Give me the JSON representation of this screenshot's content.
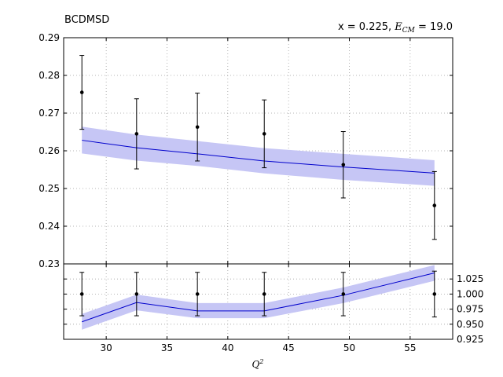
{
  "chart_data": {
    "type": "line",
    "title_left": "BCDMSD",
    "title_right_prefix": "x = 0.225, ",
    "title_right_math_main": "E",
    "title_right_math_sub": "CM",
    "title_right_suffix": " = 19.0",
    "xlabel_main": "Q",
    "xlabel_sup": "2",
    "xlim": [
      26.5,
      58.5
    ],
    "x_ticks": [
      30,
      35,
      40,
      45,
      50,
      55
    ],
    "x_tick_labels": [
      "30",
      "35",
      "40",
      "45",
      "50",
      "55"
    ],
    "top_panel": {
      "ylim": [
        0.23,
        0.29
      ],
      "y_ticks": [
        0.23,
        0.24,
        0.25,
        0.26,
        0.27,
        0.28,
        0.29
      ],
      "y_tick_labels": [
        "0.23",
        "0.24",
        "0.25",
        "0.26",
        "0.27",
        "0.28",
        "0.29"
      ],
      "grid": true,
      "data_points": {
        "x": [
          28.0,
          32.5,
          37.5,
          43.0,
          49.5,
          57.0
        ],
        "y": [
          0.2755,
          0.2645,
          0.2663,
          0.2645,
          0.2563,
          0.2455
        ],
        "err": [
          0.0098,
          0.0093,
          0.009,
          0.009,
          0.0088,
          0.009
        ]
      },
      "theory": {
        "x": [
          28.0,
          32.5,
          37.5,
          43.0,
          49.5,
          57.0
        ],
        "y": [
          0.2628,
          0.2608,
          0.2592,
          0.2573,
          0.2557,
          0.2541
        ],
        "band_low": [
          0.2593,
          0.2574,
          0.256,
          0.254,
          0.2523,
          0.2507
        ],
        "band_high": [
          0.2664,
          0.2643,
          0.2626,
          0.2607,
          0.2592,
          0.2575
        ]
      }
    },
    "bottom_panel": {
      "ylim": [
        0.925,
        1.05
      ],
      "y_ticks": [
        0.925,
        0.95,
        0.975,
        1.0,
        1.025
      ],
      "y_tick_labels": [
        "0.925",
        "0.950",
        "0.975",
        "1.000",
        "1.025"
      ],
      "grid": true,
      "data_points": {
        "x": [
          28.0,
          32.5,
          37.5,
          43.0,
          49.5,
          57.0
        ],
        "y": [
          1.0,
          1.0,
          1.0,
          1.0,
          1.0,
          1.0
        ],
        "err": [
          0.036,
          0.036,
          0.036,
          0.036,
          0.036,
          0.038
        ]
      },
      "theory": {
        "x": [
          28.0,
          32.5,
          37.5,
          43.0,
          49.5,
          57.0
        ],
        "y": [
          0.954,
          0.986,
          0.972,
          0.972,
          0.998,
          1.035
        ],
        "band_low": [
          0.941,
          0.973,
          0.96,
          0.96,
          0.985,
          1.022
        ],
        "band_high": [
          0.967,
          0.999,
          0.985,
          0.985,
          1.011,
          1.048
        ]
      }
    },
    "colors": {
      "theory_line": "#0000cc",
      "theory_band": "#c6c6f5",
      "points": "#000000",
      "grid": "#a0a0a0"
    }
  }
}
